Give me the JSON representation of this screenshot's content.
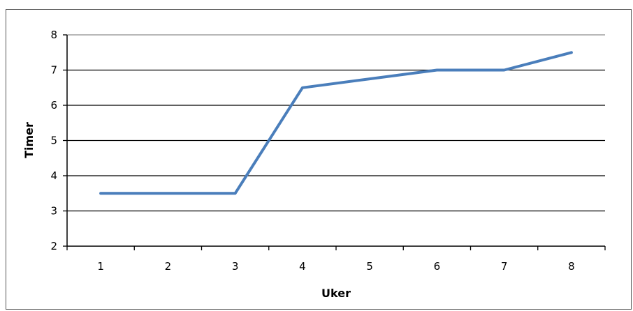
{
  "chart_data": {
    "type": "line",
    "xlabel": "Uker",
    "ylabel": "Timer",
    "categories": [
      "1",
      "2",
      "3",
      "4",
      "5",
      "6",
      "7",
      "8"
    ],
    "series": [
      {
        "values": [
          3.5,
          3.5,
          3.5,
          6.5,
          6.75,
          7.0,
          7.0,
          7.5
        ],
        "color": "#4a7ebb"
      }
    ],
    "ylim": [
      2,
      8
    ],
    "yticks": [
      "2",
      "3",
      "4",
      "5",
      "6",
      "7",
      "8"
    ],
    "grid": true,
    "colors": {
      "line": "#4a7ebb",
      "grid_top": "#8c8c8c",
      "grid": "#000000",
      "axis": "#000000"
    }
  }
}
